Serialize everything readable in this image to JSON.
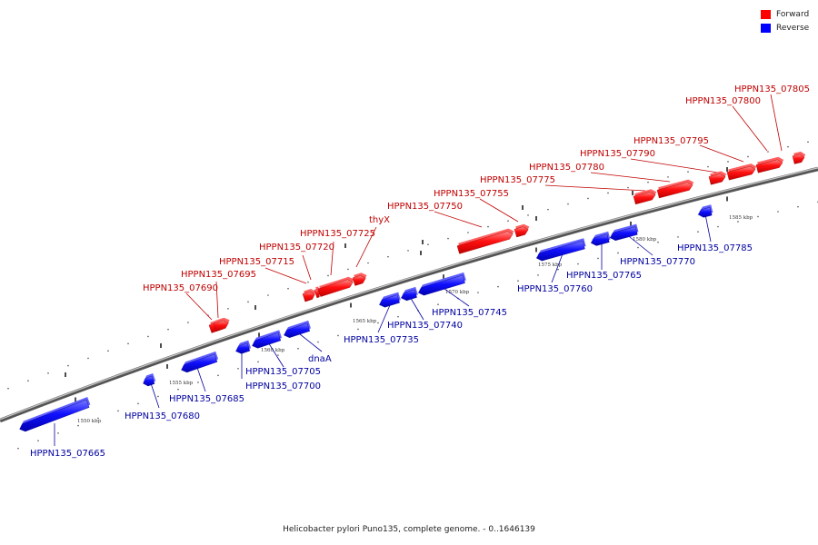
{
  "legend": {
    "forward_label": "Forward",
    "reverse_label": "Reverse",
    "forward_color": "#ff0000",
    "reverse_color": "#0000ff"
  },
  "caption": "Helicobacter pylori Puno135, complete genome. - 0..1646139",
  "axis_ticks": [
    {
      "id": "t1550",
      "label": "1550 kbp"
    },
    {
      "id": "t1555",
      "label": "1555 kbp"
    },
    {
      "id": "t1560",
      "label": "1560 kbp"
    },
    {
      "id": "t1565",
      "label": "1565 kbp"
    },
    {
      "id": "t1570",
      "label": "1570 kbp"
    },
    {
      "id": "t1575",
      "label": "1575 kbp"
    },
    {
      "id": "t1580",
      "label": "1580 kbp"
    },
    {
      "id": "t1585",
      "label": "1585 kbp"
    }
  ],
  "genes": [
    {
      "id": "g07665",
      "name": "HPPN135_07665",
      "strand": "reverse"
    },
    {
      "id": "g07680",
      "name": "HPPN135_07680",
      "strand": "reverse"
    },
    {
      "id": "g07685",
      "name": "HPPN135_07685",
      "strand": "reverse"
    },
    {
      "id": "g07690",
      "name": "HPPN135_07690",
      "strand": "forward"
    },
    {
      "id": "g07695",
      "name": "HPPN135_07695",
      "strand": "forward"
    },
    {
      "id": "g07700",
      "name": "HPPN135_07700",
      "strand": "reverse"
    },
    {
      "id": "g07705",
      "name": "HPPN135_07705",
      "strand": "reverse"
    },
    {
      "id": "gdnaA",
      "name": "dnaA",
      "strand": "reverse"
    },
    {
      "id": "g07715",
      "name": "HPPN135_07715",
      "strand": "forward"
    },
    {
      "id": "g07720",
      "name": "HPPN135_07720",
      "strand": "forward"
    },
    {
      "id": "g07725",
      "name": "HPPN135_07725",
      "strand": "forward"
    },
    {
      "id": "gthyX",
      "name": "thyX",
      "strand": "forward"
    },
    {
      "id": "g07735",
      "name": "HPPN135_07735",
      "strand": "reverse"
    },
    {
      "id": "g07740",
      "name": "HPPN135_07740",
      "strand": "reverse"
    },
    {
      "id": "g07745",
      "name": "HPPN135_07745",
      "strand": "reverse"
    },
    {
      "id": "g07750",
      "name": "HPPN135_07750",
      "strand": "forward"
    },
    {
      "id": "g07755",
      "name": "HPPN135_07755",
      "strand": "forward"
    },
    {
      "id": "g07760",
      "name": "HPPN135_07760",
      "strand": "reverse"
    },
    {
      "id": "g07765",
      "name": "HPPN135_07765",
      "strand": "reverse"
    },
    {
      "id": "g07770",
      "name": "HPPN135_07770",
      "strand": "reverse"
    },
    {
      "id": "g07775",
      "name": "HPPN135_07775",
      "strand": "forward"
    },
    {
      "id": "g07780",
      "name": "HPPN135_07780",
      "strand": "forward"
    },
    {
      "id": "g07785",
      "name": "HPPN135_07785",
      "strand": "reverse"
    },
    {
      "id": "g07790",
      "name": "HPPN135_07790",
      "strand": "forward"
    },
    {
      "id": "g07795",
      "name": "HPPN135_07795",
      "strand": "forward"
    },
    {
      "id": "g07800",
      "name": "HPPN135_07800",
      "strand": "forward"
    },
    {
      "id": "g07805",
      "name": "HPPN135_07805",
      "strand": "forward"
    }
  ]
}
